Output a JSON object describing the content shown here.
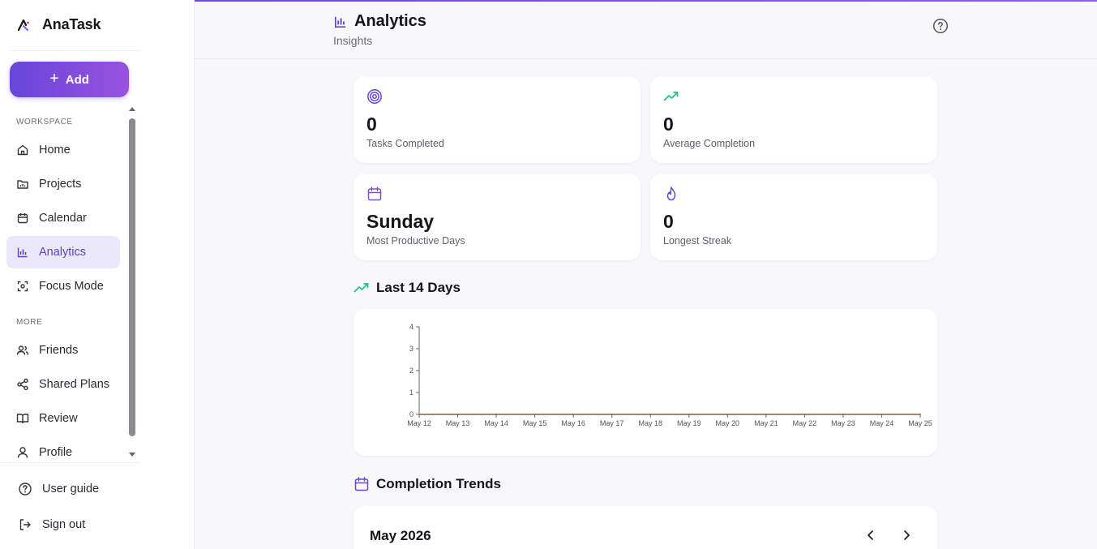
{
  "app": {
    "name": "AnaTask"
  },
  "sidebar": {
    "add_label": "Add",
    "workspace_label": "WORKSPACE",
    "more_label": "MORE",
    "items": [
      {
        "label": "Home"
      },
      {
        "label": "Projects"
      },
      {
        "label": "Calendar"
      },
      {
        "label": "Analytics"
      },
      {
        "label": "Focus Mode"
      },
      {
        "label": "Friends"
      },
      {
        "label": "Shared Plans"
      },
      {
        "label": "Review"
      },
      {
        "label": "Profile"
      }
    ],
    "bottom": [
      {
        "label": "User guide"
      },
      {
        "label": "Sign out"
      }
    ]
  },
  "header": {
    "title": "Analytics",
    "subtitle": "Insights"
  },
  "stats": [
    {
      "value": "0",
      "label": "Tasks Completed"
    },
    {
      "value": "0",
      "label": "Average Completion"
    },
    {
      "value": "Sunday",
      "label": "Most Productive Days"
    },
    {
      "value": "0",
      "label": "Longest Streak"
    }
  ],
  "sections": {
    "last14": "Last 14 Days",
    "trends": "Completion Trends"
  },
  "chart_data": {
    "type": "line",
    "x": [
      "May 12",
      "May 13",
      "May 14",
      "May 15",
      "May 16",
      "May 17",
      "May 18",
      "May 19",
      "May 20",
      "May 21",
      "May 22",
      "May 23",
      "May 24",
      "May 25"
    ],
    "series": [
      {
        "values": [
          0,
          0,
          0,
          0,
          0,
          0,
          0,
          0,
          0,
          0,
          0,
          0,
          0,
          0
        ]
      }
    ],
    "yticks": [
      0,
      1,
      2,
      3,
      4
    ],
    "ylim": [
      0,
      4
    ],
    "grid": false,
    "color": "#7a6a2a"
  },
  "calendar": {
    "month": "May 2026"
  },
  "colors": {
    "accent": "#6646d9",
    "green": "#22c07a",
    "violet": "#7c4ddb"
  }
}
